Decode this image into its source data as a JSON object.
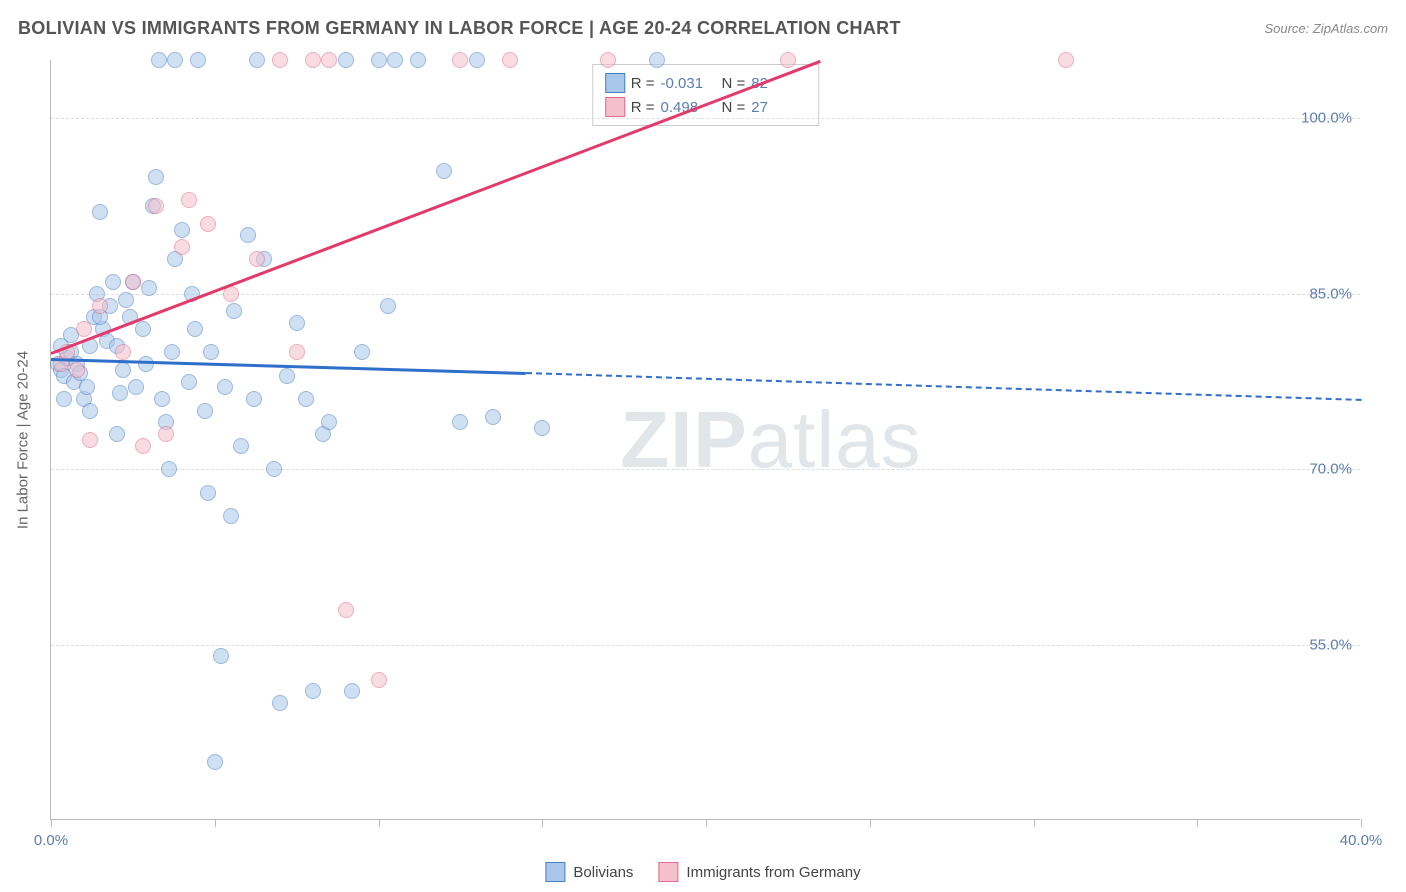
{
  "title": "BOLIVIAN VS IMMIGRANTS FROM GERMANY IN LABOR FORCE | AGE 20-24 CORRELATION CHART",
  "source": "Source: ZipAtlas.com",
  "watermark_a": "ZIP",
  "watermark_b": "atlas",
  "y_axis_label": "In Labor Force | Age 20-24",
  "chart": {
    "type": "scatter",
    "background_color": "#ffffff",
    "grid_color": "#dddddd",
    "axis_color": "#bbbbbb",
    "label_color": "#5b7db1",
    "xlim": [
      0,
      40
    ],
    "ylim": [
      40,
      105
    ],
    "x_ticks": [
      0,
      5,
      10,
      15,
      20,
      25,
      30,
      35,
      40
    ],
    "x_tick_labels": {
      "0": "0.0%",
      "40": "40.0%"
    },
    "y_ticks": [
      55,
      70,
      85,
      100
    ],
    "y_tick_labels": {
      "55": "55.0%",
      "70": "70.0%",
      "85": "85.0%",
      "100": "100.0%"
    },
    "point_radius": 8,
    "point_opacity": 0.55,
    "series": [
      {
        "name": "Bolivians",
        "fill": "#a9c7eb",
        "stroke": "#4b7fc4",
        "trend_color": "#2e6fc9",
        "R": "-0.031",
        "N": "82",
        "trend": {
          "x1": 0,
          "y1": 79.5,
          "x2": 14.5,
          "y2": 78.3,
          "dash_to_x": 40,
          "dash_to_y": 76
        },
        "points": [
          [
            0.2,
            79
          ],
          [
            0.3,
            78.5
          ],
          [
            0.4,
            78
          ],
          [
            0.5,
            79.5
          ],
          [
            0.6,
            80
          ],
          [
            0.7,
            77.5
          ],
          [
            0.8,
            79
          ],
          [
            0.9,
            78.2
          ],
          [
            1.0,
            76
          ],
          [
            1.1,
            77
          ],
          [
            1.2,
            80.5
          ],
          [
            1.3,
            83
          ],
          [
            1.4,
            85
          ],
          [
            1.5,
            92
          ],
          [
            1.6,
            82
          ],
          [
            1.7,
            81
          ],
          [
            1.8,
            84
          ],
          [
            1.9,
            86
          ],
          [
            2.0,
            80.5
          ],
          [
            2.1,
            76.5
          ],
          [
            2.2,
            78.5
          ],
          [
            2.3,
            84.5
          ],
          [
            2.4,
            83
          ],
          [
            2.6,
            77
          ],
          [
            2.8,
            82
          ],
          [
            3.0,
            85.5
          ],
          [
            3.1,
            92.5
          ],
          [
            3.2,
            95
          ],
          [
            3.3,
            105
          ],
          [
            3.4,
            76
          ],
          [
            3.5,
            74
          ],
          [
            3.6,
            70
          ],
          [
            3.8,
            105
          ],
          [
            4.0,
            90.5
          ],
          [
            4.2,
            77.5
          ],
          [
            4.4,
            82
          ],
          [
            4.5,
            105
          ],
          [
            4.7,
            75
          ],
          [
            4.8,
            68
          ],
          [
            5.0,
            45
          ],
          [
            5.2,
            54
          ],
          [
            5.5,
            66
          ],
          [
            5.6,
            83.5
          ],
          [
            5.8,
            72
          ],
          [
            6.0,
            90
          ],
          [
            6.2,
            76
          ],
          [
            6.5,
            88
          ],
          [
            6.8,
            70
          ],
          [
            7.0,
            50
          ],
          [
            7.2,
            78
          ],
          [
            7.5,
            82.5
          ],
          [
            7.8,
            76
          ],
          [
            8.0,
            51
          ],
          [
            8.3,
            73
          ],
          [
            8.5,
            74
          ],
          [
            9.0,
            105
          ],
          [
            9.2,
            51
          ],
          [
            9.5,
            80
          ],
          [
            10.0,
            105
          ],
          [
            10.3,
            84
          ],
          [
            10.5,
            105
          ],
          [
            11.2,
            105
          ],
          [
            12.0,
            95.5
          ],
          [
            12.5,
            74
          ],
          [
            13.0,
            105
          ],
          [
            13.5,
            74.5
          ],
          [
            15.0,
            73.5
          ],
          [
            18.5,
            105
          ],
          [
            3.8,
            88
          ],
          [
            4.3,
            85
          ],
          [
            2.5,
            86
          ],
          [
            1.5,
            83
          ],
          [
            0.6,
            81.5
          ],
          [
            2.9,
            79
          ],
          [
            3.7,
            80
          ],
          [
            4.9,
            80
          ],
          [
            5.3,
            77
          ],
          [
            2.0,
            73
          ],
          [
            1.2,
            75
          ],
          [
            0.4,
            76
          ],
          [
            0.3,
            80.5
          ],
          [
            6.3,
            105
          ]
        ]
      },
      {
        "name": "Immigrants from Germany",
        "fill": "#f3c0cb",
        "stroke": "#e16b8a",
        "trend_color": "#e23b6b",
        "R": "0.498",
        "N": "27",
        "trend": {
          "x1": 0,
          "y1": 80,
          "x2": 23.5,
          "y2": 105,
          "dash_to_x": null,
          "dash_to_y": null
        },
        "points": [
          [
            0.3,
            79
          ],
          [
            0.5,
            80
          ],
          [
            0.8,
            78.5
          ],
          [
            1.0,
            82
          ],
          [
            1.2,
            72.5
          ],
          [
            1.5,
            84
          ],
          [
            2.2,
            80
          ],
          [
            2.5,
            86
          ],
          [
            2.8,
            72
          ],
          [
            3.2,
            92.5
          ],
          [
            3.5,
            73
          ],
          [
            4.0,
            89
          ],
          [
            4.2,
            93
          ],
          [
            4.8,
            91
          ],
          [
            5.5,
            85
          ],
          [
            6.3,
            88
          ],
          [
            7.0,
            105
          ],
          [
            7.5,
            80
          ],
          [
            8.0,
            105
          ],
          [
            8.5,
            105
          ],
          [
            9.0,
            58
          ],
          [
            10.0,
            52
          ],
          [
            12.5,
            105
          ],
          [
            14.0,
            105
          ],
          [
            17.0,
            105
          ],
          [
            22.5,
            105
          ],
          [
            31.0,
            105
          ]
        ]
      }
    ]
  },
  "legend_stats": {
    "r_label": "R =",
    "n_label": "N ="
  },
  "bottom_legend": {
    "items": [
      "Bolivians",
      "Immigrants from Germany"
    ]
  }
}
